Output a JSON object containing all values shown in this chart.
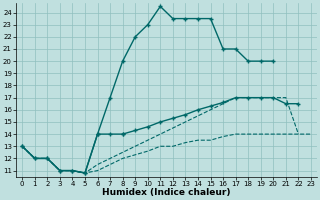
{
  "xlabel": "Humidex (Indice chaleur)",
  "bg_color": "#c0e0df",
  "grid_color": "#90c0bf",
  "line_color": "#006868",
  "xlim": [
    -0.5,
    23.5
  ],
  "ylim": [
    10.5,
    24.8
  ],
  "yticks": [
    11,
    12,
    13,
    14,
    15,
    16,
    17,
    18,
    19,
    20,
    21,
    22,
    23,
    24
  ],
  "xticks": [
    0,
    1,
    2,
    3,
    4,
    5,
    6,
    7,
    8,
    9,
    10,
    11,
    12,
    13,
    14,
    15,
    16,
    17,
    18,
    19,
    20,
    21,
    22,
    23
  ],
  "c1x": [
    0,
    1,
    2,
    3,
    4,
    5,
    6,
    7,
    8,
    9,
    10,
    11,
    12,
    13,
    14,
    15,
    16,
    17,
    18,
    19,
    20
  ],
  "c1y": [
    13.0,
    12.0,
    12.0,
    11.0,
    11.0,
    10.8,
    14.0,
    17.0,
    20.0,
    22.0,
    23.0,
    24.5,
    23.5,
    23.5,
    23.5,
    23.5,
    21.0,
    21.0,
    20.0,
    20.0,
    20.0
  ],
  "c2ax": [
    0,
    1,
    2,
    3,
    4,
    5,
    6,
    7,
    8
  ],
  "c2ay": [
    13.0,
    12.0,
    12.0,
    11.0,
    11.0,
    10.8,
    14.0,
    14.0,
    14.0
  ],
  "c2bx": [
    8,
    9,
    10,
    11,
    12,
    13,
    14,
    15,
    16,
    17,
    18,
    19,
    20,
    21,
    22
  ],
  "c2by": [
    14.0,
    14.3,
    14.6,
    15.0,
    15.3,
    15.6,
    16.0,
    16.3,
    16.6,
    17.0,
    17.0,
    17.0,
    17.0,
    16.5,
    16.5
  ],
  "c3x": [
    0,
    1,
    2,
    3,
    4,
    5,
    6,
    7,
    8,
    9,
    10,
    11,
    12,
    13,
    14,
    15,
    16,
    17,
    18,
    19,
    20,
    21,
    22
  ],
  "c3y": [
    13.0,
    12.0,
    12.0,
    11.0,
    11.0,
    10.8,
    11.5,
    12.0,
    12.5,
    13.0,
    13.5,
    14.0,
    14.5,
    15.0,
    15.5,
    16.0,
    16.5,
    17.0,
    17.0,
    17.0,
    17.0,
    17.0,
    14.0
  ],
  "c4x": [
    0,
    1,
    2,
    3,
    4,
    5,
    6,
    7,
    8,
    9,
    10,
    11,
    12,
    13,
    14,
    15,
    16,
    17,
    18,
    19,
    20,
    21,
    22,
    23
  ],
  "c4y": [
    13.0,
    12.0,
    12.0,
    11.0,
    11.0,
    10.8,
    11.0,
    11.5,
    12.0,
    12.3,
    12.6,
    13.0,
    13.0,
    13.3,
    13.5,
    13.5,
    13.8,
    14.0,
    14.0,
    14.0,
    14.0,
    14.0,
    14.0,
    14.0
  ]
}
